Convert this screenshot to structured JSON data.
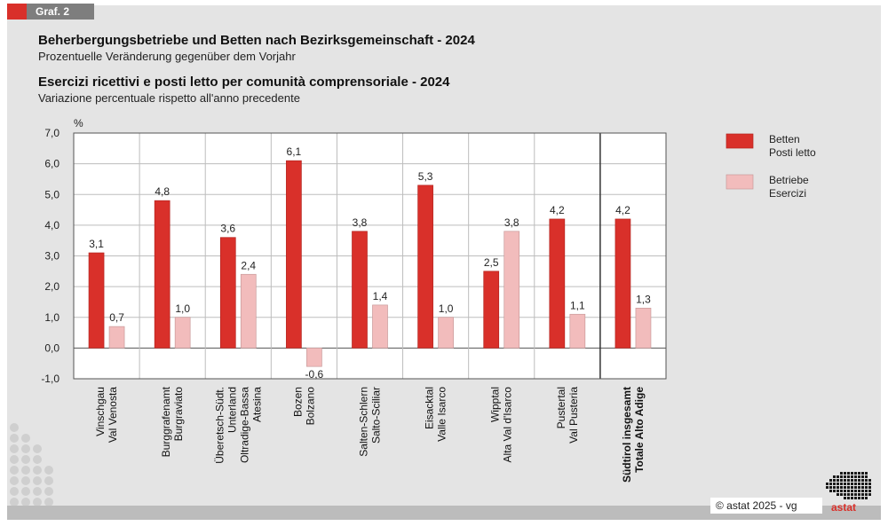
{
  "header": {
    "graph_label": "Graf. 2",
    "title_de": "Beherbergungsbetriebe und Betten nach Bezirksgemeinschaft - 2024",
    "subtitle_de": "Prozentuelle Veränderung gegenüber dem Vorjahr",
    "title_it": "Esercizi ricettivi e posti letto per comunità comprensoriale - 2024",
    "subtitle_it": "Variazione percentuale rispetto all'anno precedente"
  },
  "footer": {
    "copyright": "© astat 2025 - vg",
    "logo_text": "astat"
  },
  "colors": {
    "betten": "#d9302a",
    "betriebe": "#f2bcbc",
    "background": "#e4e4e4"
  },
  "chart_data": {
    "type": "bar",
    "ylabel": "%",
    "ylim": [
      -1.0,
      7.0
    ],
    "yticks": [
      "7,0",
      "6,0",
      "5,0",
      "4,0",
      "3,0",
      "2,0",
      "1,0",
      "0,0",
      "-1,0"
    ],
    "grid": true,
    "legend_position": "right",
    "categories": [
      [
        "Vinschgau",
        "Val Venosta"
      ],
      [
        "Burggrafenamt",
        "Burgraviato"
      ],
      [
        "Überetsch-Südt.",
        "Unterland",
        "Oltradige-Bassa",
        "Atesina"
      ],
      [
        "Bozen",
        "Bolzano"
      ],
      [
        "Salten-Schlern",
        "Salto-Sciliar"
      ],
      [
        "Eisacktal",
        "Valle Isarco"
      ],
      [
        "Wipptal",
        "Alta Val d'Isarco"
      ],
      [
        "Pustertal",
        "Val Pusteria"
      ],
      [
        "Südtirol insgesamt",
        "Totale Alto Adige"
      ]
    ],
    "series": [
      {
        "name": [
          "Betten",
          "Posti letto"
        ],
        "values": [
          3.1,
          4.8,
          3.6,
          6.1,
          3.8,
          5.3,
          2.5,
          4.2,
          4.2
        ],
        "labels": [
          "3,1",
          "4,8",
          "3,6",
          "6,1",
          "3,8",
          "5,3",
          "2,5",
          "4,2",
          "4,2"
        ]
      },
      {
        "name": [
          "Betriebe",
          "Esercizi"
        ],
        "values": [
          0.7,
          1.0,
          2.4,
          -0.6,
          1.4,
          1.0,
          3.8,
          1.1,
          1.3
        ],
        "labels": [
          "0,7",
          "1,0",
          "2,4",
          "-0,6",
          "1,4",
          "1,0",
          "3,8",
          "1,1",
          "1,3"
        ]
      }
    ]
  }
}
